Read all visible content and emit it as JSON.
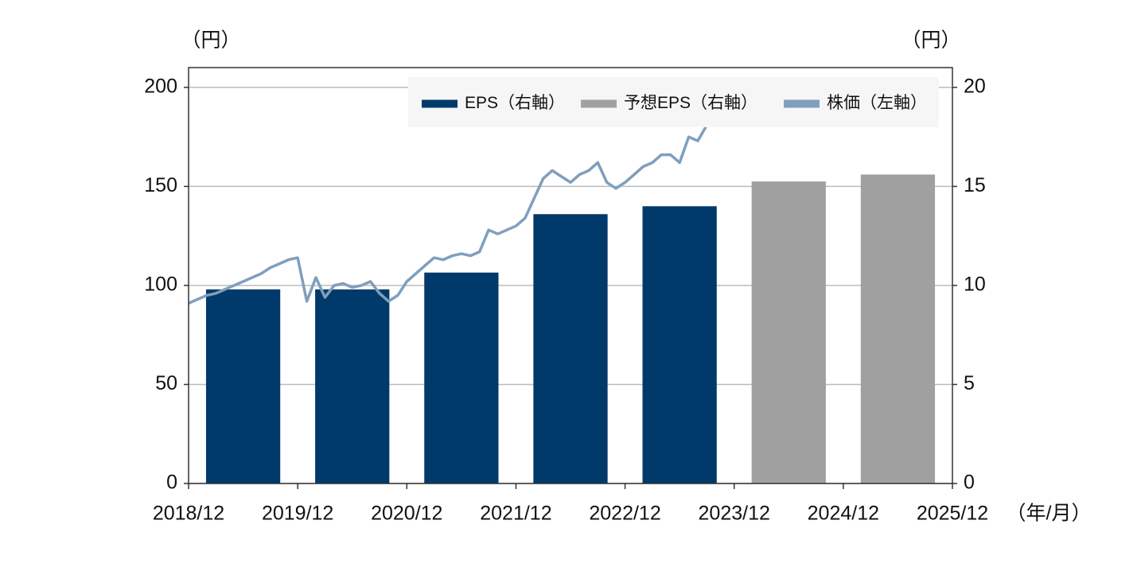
{
  "chart_data": {
    "type": "bar",
    "y_unit": "（円）",
    "y2_unit": "（円）",
    "x_unit": "（年/月）",
    "xticks": [
      "2018/12",
      "2019/12",
      "2020/12",
      "2021/12",
      "2022/12",
      "2023/12",
      "2024/12",
      "2025/12"
    ],
    "ylim": [
      0,
      210
    ],
    "yticks": [
      0,
      50,
      100,
      150,
      200
    ],
    "y2lim": [
      0,
      21
    ],
    "y2ticks": [
      0,
      5,
      10,
      15,
      20
    ],
    "grid": true,
    "legend": "top-right",
    "series": [
      {
        "name": "EPS（右軸）",
        "type": "bar",
        "axis": "y2",
        "color": "#003a6b",
        "values": [
          9.8,
          9.8,
          10.65,
          13.6,
          14.0,
          null,
          null
        ]
      },
      {
        "name": "予想EPS（右軸）",
        "type": "bar",
        "axis": "y2",
        "color": "#a0a0a0",
        "values": [
          null,
          null,
          null,
          null,
          null,
          15.25,
          15.6
        ]
      },
      {
        "name": "株価（左軸）",
        "type": "line",
        "axis": "y",
        "color": "#7f9fbe",
        "x": [
          "2018/12",
          "2019/01",
          "2019/02",
          "2019/03",
          "2019/04",
          "2019/05",
          "2019/06",
          "2019/07",
          "2019/08",
          "2019/09",
          "2019/10",
          "2019/11",
          "2019/12",
          "2020/01",
          "2020/02",
          "2020/03",
          "2020/04",
          "2020/05",
          "2020/06",
          "2020/07",
          "2020/08",
          "2020/09",
          "2020/10",
          "2020/11",
          "2020/12",
          "2021/01",
          "2021/02",
          "2021/03",
          "2021/04",
          "2021/05",
          "2021/06",
          "2021/07",
          "2021/08",
          "2021/09",
          "2021/10",
          "2021/11",
          "2021/12",
          "2022/01",
          "2022/02",
          "2022/03",
          "2022/04",
          "2022/05",
          "2022/06",
          "2022/07",
          "2022/08",
          "2022/09",
          "2022/10",
          "2022/11",
          "2022/12",
          "2023/01",
          "2023/02",
          "2023/03",
          "2023/04",
          "2023/05",
          "2023/06",
          "2023/07",
          "2023/08",
          "2023/09"
        ],
        "values": [
          91,
          93,
          95,
          96,
          98,
          100,
          102,
          104,
          106,
          109,
          111,
          113,
          114,
          92,
          104,
          94,
          100,
          101,
          99,
          100,
          102,
          96,
          92,
          95,
          102,
          106,
          110,
          114,
          113,
          115,
          116,
          115,
          117,
          128,
          126,
          128,
          130,
          134,
          144,
          154,
          158,
          155,
          152,
          156,
          158,
          162,
          152,
          149,
          152,
          156,
          160,
          162,
          166,
          166,
          162,
          175,
          173,
          181
        ]
      }
    ]
  }
}
